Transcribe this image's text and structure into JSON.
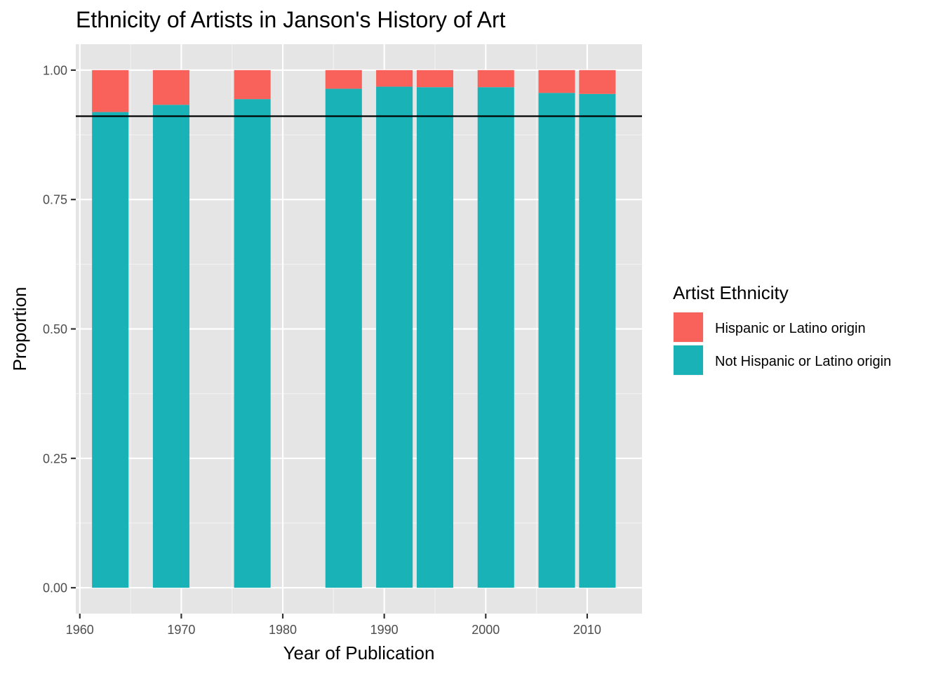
{
  "chart_data": {
    "type": "bar",
    "stacked": true,
    "title": "Ethnicity of Artists in Janson's History of Art",
    "xlabel": "Year of Publication",
    "ylabel": "Proportion",
    "x": [
      1963,
      1969,
      1977,
      1986,
      1991,
      1995,
      2001,
      2007,
      2011
    ],
    "series": [
      {
        "name": "Not Hispanic or Latino origin",
        "color": "#19b3b7",
        "values": [
          0.919,
          0.933,
          0.944,
          0.964,
          0.968,
          0.967,
          0.967,
          0.956,
          0.954
        ]
      },
      {
        "name": "Hispanic or Latino origin",
        "color": "#f8625b",
        "values": [
          0.081,
          0.067,
          0.056,
          0.036,
          0.032,
          0.033,
          0.033,
          0.044,
          0.046
        ]
      }
    ],
    "xlim": [
      1959.6,
      2015.4
    ],
    "ylim": [
      -0.05,
      1.05
    ],
    "xticks": [
      1960,
      1970,
      1980,
      1990,
      2000,
      2010
    ],
    "xtick_labels": [
      "1960",
      "1970",
      "1980",
      "1990",
      "2000",
      "2010"
    ],
    "yticks": [
      0,
      0.25,
      0.5,
      0.75,
      1
    ],
    "ytick_labels": [
      "0.00",
      "0.25",
      "0.50",
      "0.75",
      "1.00"
    ],
    "reference_line": {
      "y": 0.911,
      "color": "#000000"
    },
    "legend": {
      "title": "Artist Ethnicity",
      "position": "right",
      "entries": [
        {
          "label": "Hispanic or Latino origin",
          "color": "#f8625b"
        },
        {
          "label": "Not Hispanic or Latino origin",
          "color": "#19b3b7"
        }
      ]
    },
    "grid": true,
    "panel_background": "#e5e5e5"
  }
}
